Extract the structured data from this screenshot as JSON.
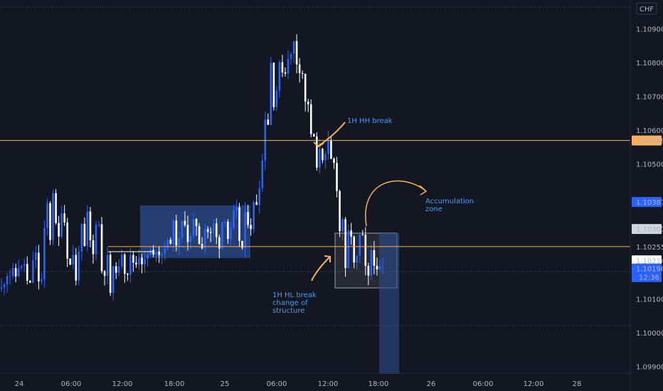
{
  "chart_data": {
    "type": "candlestick",
    "currency": "CHF",
    "colors": {
      "background": "#131722",
      "bull": "#2962ff",
      "bear": "#ffffff",
      "level": "#f7b05b",
      "dotted": "#4a5568",
      "zone": "#2b4c8c",
      "annotation": "#4d9bf2",
      "price_tag": "#2962ff"
    },
    "x_ticks": [
      "24",
      "06:00",
      "12:00",
      "18:00",
      "25",
      "06:00",
      "12:00",
      "18:00",
      "26",
      "06:00",
      "12:00",
      "28"
    ],
    "y_ticks": [
      "1.10900",
      "1.10800",
      "1.10700",
      "1.10600",
      "1.10500",
      "1.10100",
      "1.10000",
      "1.09900"
    ],
    "ylim": [
      1.0988,
      1.10985
    ],
    "price_tags": [
      {
        "label": "1.10569",
        "value": 1.10569,
        "style": "level"
      },
      {
        "label": "1.10387",
        "value": 1.10387,
        "style": "blue"
      },
      {
        "label": "1.10307",
        "value": 1.10307,
        "style": "gray"
      },
      {
        "label": "1.10255",
        "value": 1.10255,
        "style": "dark"
      },
      {
        "label": "1.10214",
        "value": 1.10214,
        "style": "light"
      },
      {
        "label": "1.10190",
        "sub": "12:36",
        "value": 1.1019,
        "style": "blue"
      }
    ],
    "levels": [
      1.10569,
      1.10255
    ],
    "annotations": [
      {
        "id": "hh",
        "lines": [
          "1H HH break"
        ]
      },
      {
        "id": "hl",
        "lines": [
          "1H HL break",
          "change of",
          "structure"
        ]
      },
      {
        "id": "acc",
        "lines": [
          "Accumulation",
          "zone"
        ]
      }
    ],
    "candle_params": {
      "count": 134,
      "seed": 11
    },
    "candles": [
      [
        0,
        1.1013,
        1.10155
      ],
      [
        2,
        1.10165,
        1.10175
      ],
      [
        4,
        1.10138,
        1.1018
      ],
      [
        6,
        1.10178,
        1.10198
      ],
      [
        8,
        1.1016,
        1.10205
      ],
      [
        10,
        1.10205,
        1.1014
      ],
      [
        12,
        1.10155,
        1.1023
      ],
      [
        14,
        1.1022,
        1.10155
      ],
      [
        16,
        1.1014,
        1.1038
      ],
      [
        18,
        1.1035,
        1.1042
      ],
      [
        20,
        1.104,
        1.1028
      ],
      [
        22,
        1.1026,
        1.1033
      ],
      [
        24,
        1.1032,
        1.102
      ],
      [
        26,
        1.1019,
        1.1015
      ],
      [
        28,
        1.1015,
        1.1031
      ],
      [
        30,
        1.1031,
        1.1035
      ],
      [
        32,
        1.1034,
        1.1023
      ],
      [
        34,
        1.1019,
        1.1032
      ],
      [
        36,
        1.1032,
        1.1018
      ],
      [
        38,
        1.1018,
        1.1012
      ],
      [
        40,
        1.1013,
        1.1019
      ],
      [
        42,
        1.1019,
        1.1024
      ],
      [
        44,
        1.10235,
        1.1018
      ],
      [
        46,
        1.1018,
        1.1021
      ],
      [
        48,
        1.1021,
        1.1023
      ],
      [
        50,
        1.1022,
        1.1021
      ],
      [
        52,
        1.102,
        1.1024
      ],
      [
        54,
        1.1024,
        1.1025
      ],
      [
        56,
        1.1025,
        1.10235
      ],
      [
        58,
        1.1023,
        1.10265
      ],
      [
        60,
        1.10265,
        1.1032
      ],
      [
        62,
        1.1032,
        1.1027
      ],
      [
        64,
        1.1027,
        1.1033
      ],
      [
        66,
        1.1033,
        1.1028
      ],
      [
        68,
        1.1028,
        1.1032
      ],
      [
        70,
        1.1032,
        1.1026
      ],
      [
        72,
        1.1026,
        1.103
      ],
      [
        74,
        1.103,
        1.1032
      ],
      [
        76,
        1.1032,
        1.1026
      ],
      [
        78,
        1.1026,
        1.1034
      ],
      [
        80,
        1.1034,
        1.103
      ],
      [
        82,
        1.103,
        1.1036
      ],
      [
        84,
        1.1036,
        1.1025
      ],
      [
        86,
        1.1025,
        1.1033
      ],
      [
        88,
        1.1033,
        1.1038
      ],
      [
        90,
        1.1038,
        1.1044
      ],
      [
        92,
        1.1044,
        1.1064
      ],
      [
        94,
        1.1064,
        1.108
      ],
      [
        96,
        1.108,
        1.1072
      ],
      [
        98,
        1.1072,
        1.1078
      ],
      [
        100,
        1.1078,
        1.1082
      ],
      [
        102,
        1.1082,
        1.1086
      ],
      [
        104,
        1.1086,
        1.1078
      ],
      [
        106,
        1.1078,
        1.1068
      ],
      [
        108,
        1.1068,
        1.1058
      ],
      [
        110,
        1.1058,
        1.1048
      ],
      [
        112,
        1.1048,
        1.1052
      ],
      [
        114,
        1.1052,
        1.1056
      ],
      [
        116,
        1.1056,
        1.105
      ],
      [
        118,
        1.105,
        1.103
      ],
      [
        120,
        1.103,
        1.1018
      ],
      [
        122,
        1.1018,
        1.1029
      ],
      [
        124,
        1.1029,
        1.1022
      ],
      [
        126,
        1.1022,
        1.1028
      ],
      [
        128,
        1.1028,
        1.1016
      ],
      [
        130,
        1.1016,
        1.1021
      ],
      [
        132,
        1.1021,
        1.1019
      ]
    ]
  }
}
